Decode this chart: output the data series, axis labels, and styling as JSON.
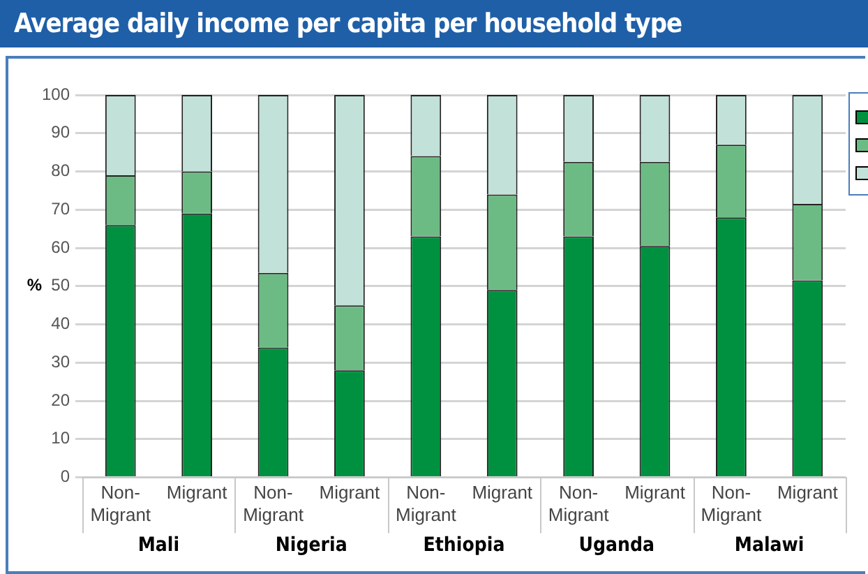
{
  "chart_data": {
    "type": "bar",
    "title": "Average daily income per capita per household type",
    "ylabel": "%",
    "categories": [
      "Non-Migrant",
      "Migrant",
      "Non-Migrant",
      "Migrant",
      "Non-Migrant",
      "Migrant",
      "Non-Migrant",
      "Migrant",
      "Non-Migrant",
      "Migrant"
    ],
    "annotations": [
      "Mali",
      "Nigeria",
      "Ethiopia",
      "Uganda",
      "Malawi"
    ],
    "stacked": true,
    "series": [
      {
        "color": "#009140",
        "values": [
          66,
          69,
          34,
          28,
          63,
          49,
          63,
          60.5,
          68,
          51.5
        ]
      },
      {
        "color": "#6dbb84",
        "values": [
          13,
          11,
          19.5,
          17,
          21,
          25,
          19.5,
          22,
          19,
          20
        ]
      },
      {
        "color": "#c2e1d8",
        "values": [
          21,
          20,
          46.5,
          55,
          16,
          26,
          17.5,
          17.5,
          13,
          28.5
        ]
      }
    ],
    "ylim": [
      0,
      100
    ],
    "yticks": [
      0,
      10,
      20,
      30,
      40,
      50,
      60,
      70,
      80,
      90,
      100
    ],
    "grid": "y"
  }
}
